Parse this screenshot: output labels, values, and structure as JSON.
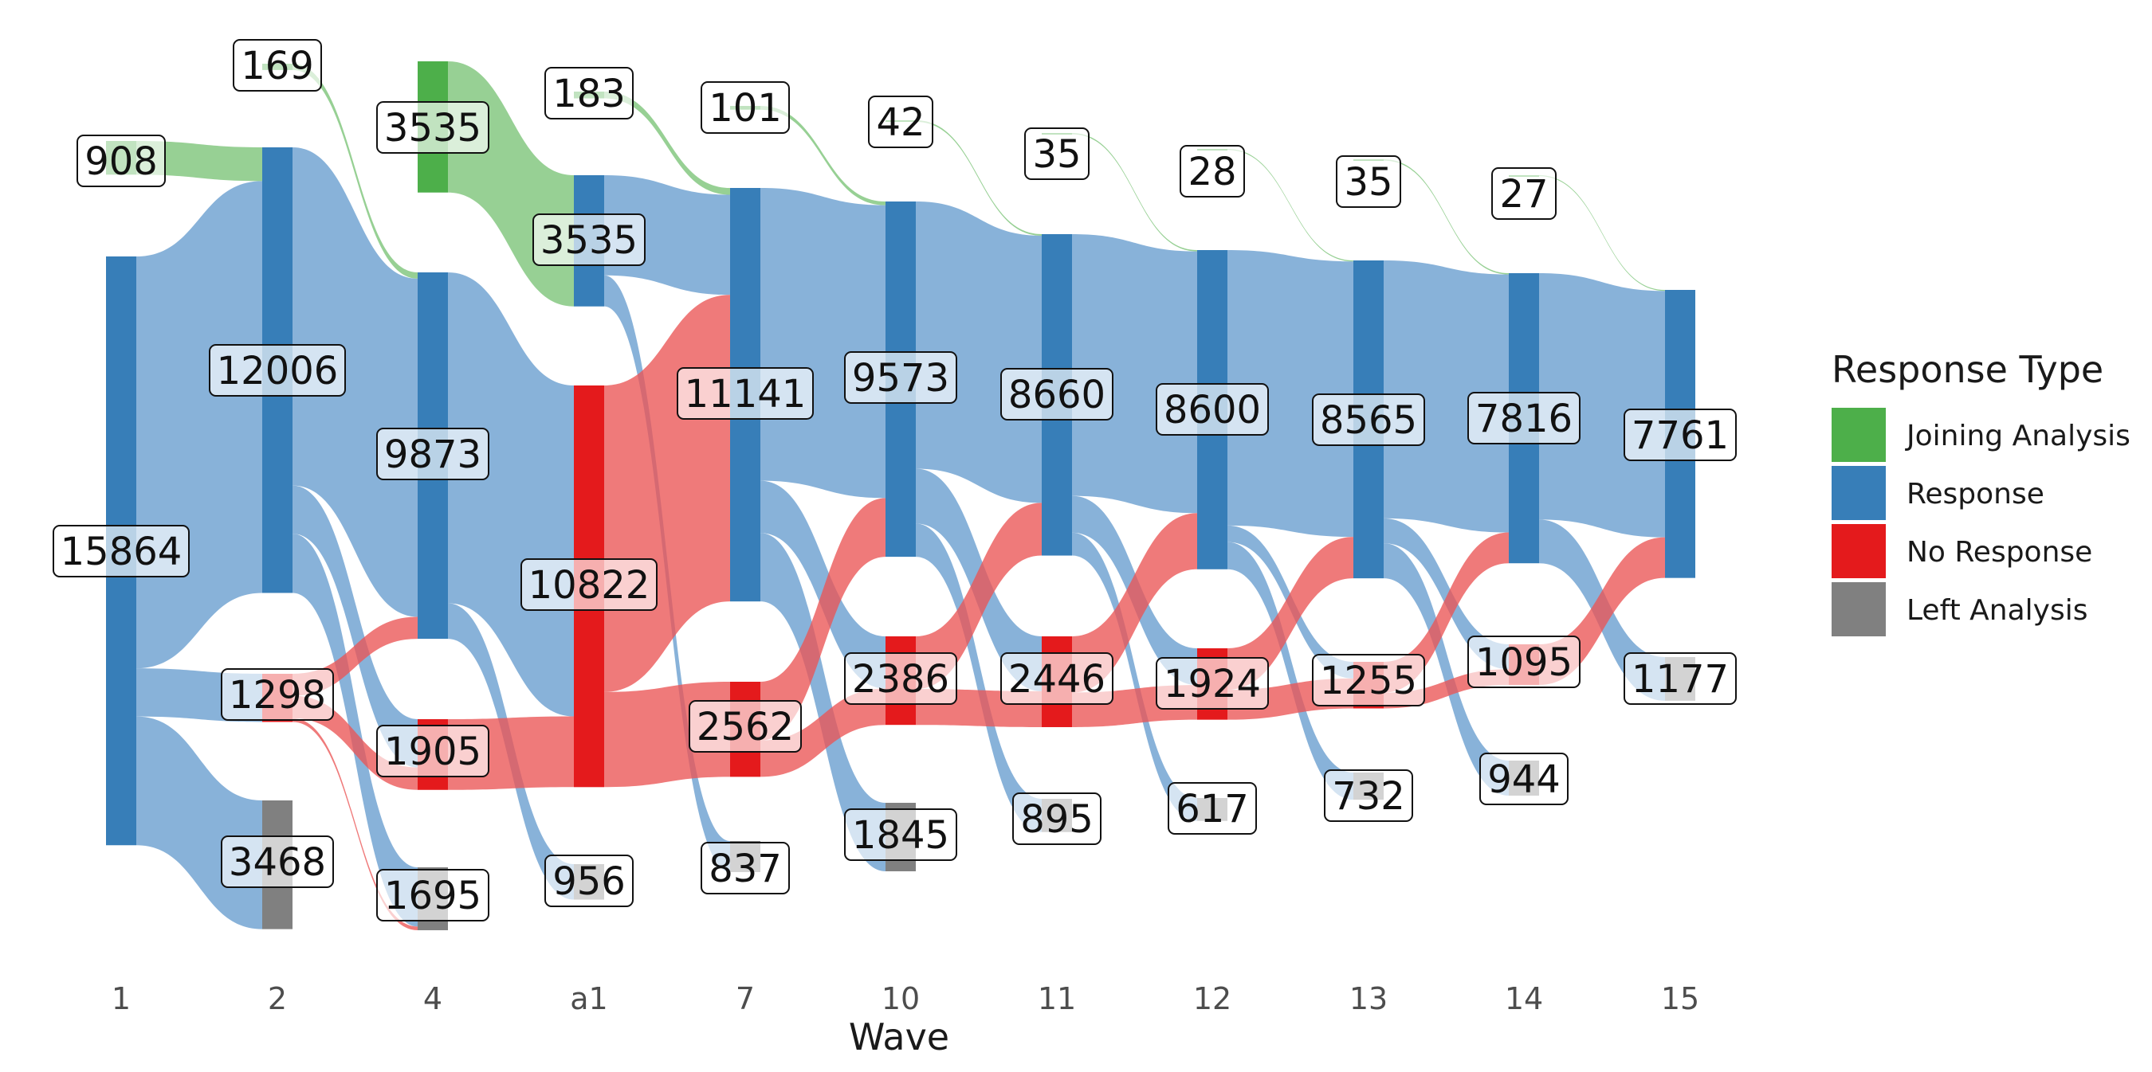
{
  "chart_data": {
    "type": "sankey",
    "xlabel": "Wave",
    "waves": [
      "1",
      "2",
      "4",
      "a1",
      "7",
      "10",
      "11",
      "12",
      "13",
      "14",
      "15"
    ],
    "legend": {
      "title": "Response Type",
      "placement": "right",
      "items": [
        {
          "label": "Joining Analysis",
          "color": "#4DAF4A"
        },
        {
          "label": "Response",
          "color": "#377EB8"
        },
        {
          "label": "No Response",
          "color": "#E41A1C"
        },
        {
          "label": "Left Analysis",
          "color": "#808080"
        }
      ]
    },
    "nodes": [
      {
        "wave": "1",
        "type": "Joining Analysis",
        "value": 908
      },
      {
        "wave": "1",
        "type": "Response",
        "value": 15864
      },
      {
        "wave": "2",
        "type": "Joining Analysis",
        "value": 169
      },
      {
        "wave": "2",
        "type": "Response",
        "value": 12006
      },
      {
        "wave": "2",
        "type": "No Response",
        "value": 1298
      },
      {
        "wave": "2",
        "type": "Left Analysis",
        "value": 3468
      },
      {
        "wave": "4",
        "type": "Joining Analysis",
        "value": 3535
      },
      {
        "wave": "4",
        "type": "Response",
        "value": 9873
      },
      {
        "wave": "4",
        "type": "No Response",
        "value": 1905
      },
      {
        "wave": "4",
        "type": "Left Analysis",
        "value": 1695
      },
      {
        "wave": "a1",
        "type": "Joining Analysis",
        "value": 183
      },
      {
        "wave": "a1",
        "type": "Response",
        "value": 3535
      },
      {
        "wave": "a1",
        "type": "No Response",
        "value": 10822
      },
      {
        "wave": "a1",
        "type": "Left Analysis",
        "value": 956
      },
      {
        "wave": "7",
        "type": "Joining Analysis",
        "value": 101
      },
      {
        "wave": "7",
        "type": "Response",
        "value": 11141
      },
      {
        "wave": "7",
        "type": "No Response",
        "value": 2562
      },
      {
        "wave": "7",
        "type": "Left Analysis",
        "value": 837
      },
      {
        "wave": "10",
        "type": "Joining Analysis",
        "value": 42
      },
      {
        "wave": "10",
        "type": "Response",
        "value": 9573
      },
      {
        "wave": "10",
        "type": "No Response",
        "value": 2386
      },
      {
        "wave": "10",
        "type": "Left Analysis",
        "value": 1845
      },
      {
        "wave": "11",
        "type": "Joining Analysis",
        "value": 35
      },
      {
        "wave": "11",
        "type": "Response",
        "value": 8660
      },
      {
        "wave": "11",
        "type": "No Response",
        "value": 2446
      },
      {
        "wave": "11",
        "type": "Left Analysis",
        "value": 895
      },
      {
        "wave": "12",
        "type": "Joining Analysis",
        "value": 28
      },
      {
        "wave": "12",
        "type": "Response",
        "value": 8600
      },
      {
        "wave": "12",
        "type": "No Response",
        "value": 1924
      },
      {
        "wave": "12",
        "type": "Left Analysis",
        "value": 617
      },
      {
        "wave": "13",
        "type": "Joining Analysis",
        "value": 35
      },
      {
        "wave": "13",
        "type": "Response",
        "value": 8565
      },
      {
        "wave": "13",
        "type": "No Response",
        "value": 1255
      },
      {
        "wave": "13",
        "type": "Left Analysis",
        "value": 732
      },
      {
        "wave": "14",
        "type": "Joining Analysis",
        "value": 27
      },
      {
        "wave": "14",
        "type": "Response",
        "value": 7816
      },
      {
        "wave": "14",
        "type": "No Response",
        "value": 1095
      },
      {
        "wave": "14",
        "type": "Left Analysis",
        "value": 944
      },
      {
        "wave": "15",
        "type": "Response",
        "value": 7761
      },
      {
        "wave": "15",
        "type": "Left Analysis",
        "value": 1177
      }
    ],
    "flows": [
      {
        "from_wave": "1",
        "from": "Joining Analysis",
        "to": "Response",
        "value": 908
      },
      {
        "from_wave": "1",
        "from": "Response",
        "to": "Response",
        "value": 11098
      },
      {
        "from_wave": "1",
        "from": "Response",
        "to": "No Response",
        "value": 1298
      },
      {
        "from_wave": "1",
        "from": "Response",
        "to": "Left Analysis",
        "value": 3468
      },
      {
        "from_wave": "2",
        "from": "Joining Analysis",
        "to": "Response",
        "value": 169
      },
      {
        "from_wave": "2",
        "from": "Response",
        "to": "Response",
        "value": 9111
      },
      {
        "from_wave": "2",
        "from": "Response",
        "to": "No Response",
        "value": 1300
      },
      {
        "from_wave": "2",
        "from": "Response",
        "to": "Left Analysis",
        "value": 1595
      },
      {
        "from_wave": "2",
        "from": "No Response",
        "to": "Response",
        "value": 593
      },
      {
        "from_wave": "2",
        "from": "No Response",
        "to": "No Response",
        "value": 605
      },
      {
        "from_wave": "2",
        "from": "No Response",
        "to": "Left Analysis",
        "value": 100
      },
      {
        "from_wave": "4",
        "from": "Joining Analysis",
        "to": "Response",
        "value": 3535
      },
      {
        "from_wave": "4",
        "from": "Response",
        "to": "No Response",
        "value": 8917
      },
      {
        "from_wave": "4",
        "from": "Response",
        "to": "Left Analysis",
        "value": 956
      },
      {
        "from_wave": "4",
        "from": "No Response",
        "to": "No Response",
        "value": 1905
      },
      {
        "from_wave": "a1",
        "from": "Joining Analysis",
        "to": "Response",
        "value": 183
      },
      {
        "from_wave": "a1",
        "from": "Response",
        "to": "Response",
        "value": 2698
      },
      {
        "from_wave": "a1",
        "from": "Response",
        "to": "Left Analysis",
        "value": 837
      },
      {
        "from_wave": "a1",
        "from": "No Response",
        "to": "Response",
        "value": 8260
      },
      {
        "from_wave": "a1",
        "from": "No Response",
        "to": "No Response",
        "value": 2562
      },
      {
        "from_wave": "7",
        "from": "Joining Analysis",
        "to": "Response",
        "value": 101
      },
      {
        "from_wave": "7",
        "from": "Response",
        "to": "Response",
        "value": 7890
      },
      {
        "from_wave": "7",
        "from": "Response",
        "to": "No Response",
        "value": 1406
      },
      {
        "from_wave": "7",
        "from": "Response",
        "to": "Left Analysis",
        "value": 1845
      },
      {
        "from_wave": "7",
        "from": "No Response",
        "to": "Response",
        "value": 1582
      },
      {
        "from_wave": "7",
        "from": "No Response",
        "to": "No Response",
        "value": 980
      },
      {
        "from_wave": "10",
        "from": "Joining Analysis",
        "to": "Response",
        "value": 42
      },
      {
        "from_wave": "10",
        "from": "Response",
        "to": "Response",
        "value": 7199
      },
      {
        "from_wave": "10",
        "from": "Response",
        "to": "No Response",
        "value": 1479
      },
      {
        "from_wave": "10",
        "from": "Response",
        "to": "Left Analysis",
        "value": 895
      },
      {
        "from_wave": "10",
        "from": "No Response",
        "to": "Response",
        "value": 1419
      },
      {
        "from_wave": "10",
        "from": "No Response",
        "to": "No Response",
        "value": 967
      },
      {
        "from_wave": "11",
        "from": "Joining Analysis",
        "to": "Response",
        "value": 35
      },
      {
        "from_wave": "11",
        "from": "Response",
        "to": "Response",
        "value": 7052
      },
      {
        "from_wave": "11",
        "from": "Response",
        "to": "No Response",
        "value": 991
      },
      {
        "from_wave": "11",
        "from": "Response",
        "to": "Left Analysis",
        "value": 617
      },
      {
        "from_wave": "11",
        "from": "No Response",
        "to": "Response",
        "value": 1513
      },
      {
        "from_wave": "11",
        "from": "No Response",
        "to": "No Response",
        "value": 933
      },
      {
        "from_wave": "12",
        "from": "Joining Analysis",
        "to": "Response",
        "value": 28
      },
      {
        "from_wave": "12",
        "from": "Response",
        "to": "Response",
        "value": 7421
      },
      {
        "from_wave": "12",
        "from": "Response",
        "to": "No Response",
        "value": 447
      },
      {
        "from_wave": "12",
        "from": "Response",
        "to": "Left Analysis",
        "value": 732
      },
      {
        "from_wave": "12",
        "from": "No Response",
        "to": "Response",
        "value": 1116
      },
      {
        "from_wave": "12",
        "from": "No Response",
        "to": "No Response",
        "value": 808
      },
      {
        "from_wave": "13",
        "from": "Joining Analysis",
        "to": "Response",
        "value": 35
      },
      {
        "from_wave": "13",
        "from": "Response",
        "to": "Response",
        "value": 6951
      },
      {
        "from_wave": "13",
        "from": "Response",
        "to": "No Response",
        "value": 670
      },
      {
        "from_wave": "13",
        "from": "Response",
        "to": "Left Analysis",
        "value": 944
      },
      {
        "from_wave": "13",
        "from": "No Response",
        "to": "Response",
        "value": 830
      },
      {
        "from_wave": "13",
        "from": "No Response",
        "to": "No Response",
        "value": 425
      },
      {
        "from_wave": "14",
        "from": "Joining Analysis",
        "to": "Response",
        "value": 27
      },
      {
        "from_wave": "14",
        "from": "Response",
        "to": "Response",
        "value": 6639
      },
      {
        "from_wave": "14",
        "from": "Response",
        "to": "Left Analysis",
        "value": 1177
      },
      {
        "from_wave": "14",
        "from": "No Response",
        "to": "Response",
        "value": 1095
      }
    ]
  }
}
